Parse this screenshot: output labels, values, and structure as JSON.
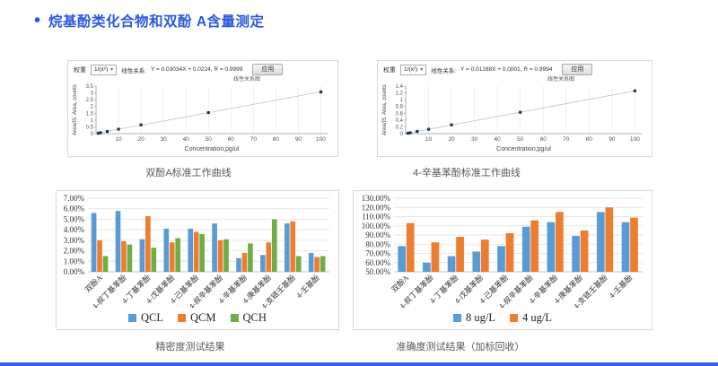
{
  "page": {
    "title": "烷基酚类化合物和双酚 A含量测定",
    "bullet": "•",
    "accent_color": "#2b59dd"
  },
  "chart_data": [
    {
      "type": "scatter",
      "caption": "双酚A标准工作曲线",
      "toolbar": {
        "weight_label": "权重",
        "weight_value": "1/(x²)",
        "relation_label": "线性关系:",
        "equation": "Y = 0.03034X + 0.0224, R = 0.9999",
        "apply_label": "应用",
        "subtag": "线性关系图"
      },
      "x": [
        1,
        2,
        5,
        10,
        20,
        50,
        100
      ],
      "y": [
        0.03,
        0.07,
        0.16,
        0.33,
        0.65,
        1.55,
        3.07
      ],
      "xlabel": "Concentration,pg/ul",
      "ylabel": "Area/IS. Area, counts",
      "xlim": [
        0,
        103
      ],
      "ylim": [
        0,
        3.5
      ],
      "xticks": [
        10,
        20,
        30,
        40,
        50,
        60,
        70,
        80,
        90,
        100
      ],
      "yticks": [
        0,
        0.5,
        1,
        1.5,
        2,
        2.5,
        3,
        3.5
      ],
      "trendline": true,
      "grid": "vertical",
      "point_color": "#17375e",
      "line_color": "#b7b7b7"
    },
    {
      "type": "scatter",
      "caption": "4-辛基苯酚标准工作曲线",
      "toolbar": {
        "weight_label": "权重",
        "weight_value": "1/(x²)",
        "relation_label": "线性关系:",
        "equation": "Y = 0.01288X + 0.0001, R = 0.9994",
        "apply_label": "应用",
        "subtag": "线性关系图"
      },
      "x": [
        1,
        2,
        5,
        10,
        20,
        50,
        100
      ],
      "y": [
        0.013,
        0.026,
        0.065,
        0.13,
        0.26,
        0.63,
        1.26
      ],
      "xlabel": "Concentration,pg/ul",
      "ylabel": "Area/IS. Area, counts",
      "xlim": [
        0,
        103
      ],
      "ylim": [
        0,
        1.4
      ],
      "xticks": [
        10,
        20,
        30,
        40,
        50,
        60,
        70,
        80,
        90,
        100
      ],
      "yticks": [
        0,
        0.2,
        0.4,
        0.6,
        0.8,
        1,
        1.2,
        1.4
      ],
      "trendline": true,
      "grid": "vertical",
      "point_color": "#17375e",
      "line_color": "#b7b7b7"
    },
    {
      "type": "bar",
      "caption": "精密度测试结果",
      "categories": [
        "双酚A",
        "4-叔丁基苯酚",
        "4-丁基苯酚",
        "4-戊基苯酚",
        "4-己基苯酚",
        "4-叔辛基苯酚",
        "4-辛基苯酚",
        "4-庚基苯酚",
        "4-支链壬基酚",
        "4-壬基酚"
      ],
      "series": [
        {
          "name": "QCL",
          "color": "#5b9bd5",
          "values": [
            5.6,
            5.8,
            3.1,
            4.1,
            4.1,
            4.6,
            1.3,
            1.6,
            4.6,
            1.8
          ]
        },
        {
          "name": "QCM",
          "color": "#ed7d31",
          "values": [
            3.0,
            2.9,
            5.3,
            2.8,
            3.8,
            3.0,
            1.8,
            2.8,
            4.8,
            1.4
          ]
        },
        {
          "name": "QCH",
          "color": "#70ad47",
          "values": [
            1.5,
            2.6,
            2.3,
            3.2,
            3.6,
            3.1,
            2.7,
            5.0,
            1.5,
            1.5
          ]
        }
      ],
      "ylim": [
        0,
        7
      ],
      "ytick_step": 1,
      "ytick_format": "percent",
      "grid": "horizontal",
      "legend_position": "bottom"
    },
    {
      "type": "bar",
      "caption": "准确度测试结果（加标回收）",
      "categories": [
        "双酚A",
        "4-叔丁基苯酚",
        "4-丁基苯酚",
        "4-戊基苯酚",
        "4-己基苯酚",
        "4-叔辛基苯酚",
        "4-辛基苯酚",
        "4-庚基苯酚",
        "4-支链壬基酚",
        "4-壬基酚"
      ],
      "series": [
        {
          "name": "8 ug/L",
          "color": "#5b9bd5",
          "values": [
            78,
            60,
            67,
            72,
            78,
            99,
            104,
            89,
            115,
            104
          ]
        },
        {
          "name": "4 ug/L",
          "color": "#ed7d31",
          "values": [
            103,
            82,
            88,
            85,
            92,
            106,
            115,
            95,
            120,
            109
          ]
        }
      ],
      "ylim": [
        50,
        130
      ],
      "ytick_step": 10,
      "ytick_format": "percent",
      "grid": "horizontal",
      "legend_position": "bottom"
    }
  ]
}
